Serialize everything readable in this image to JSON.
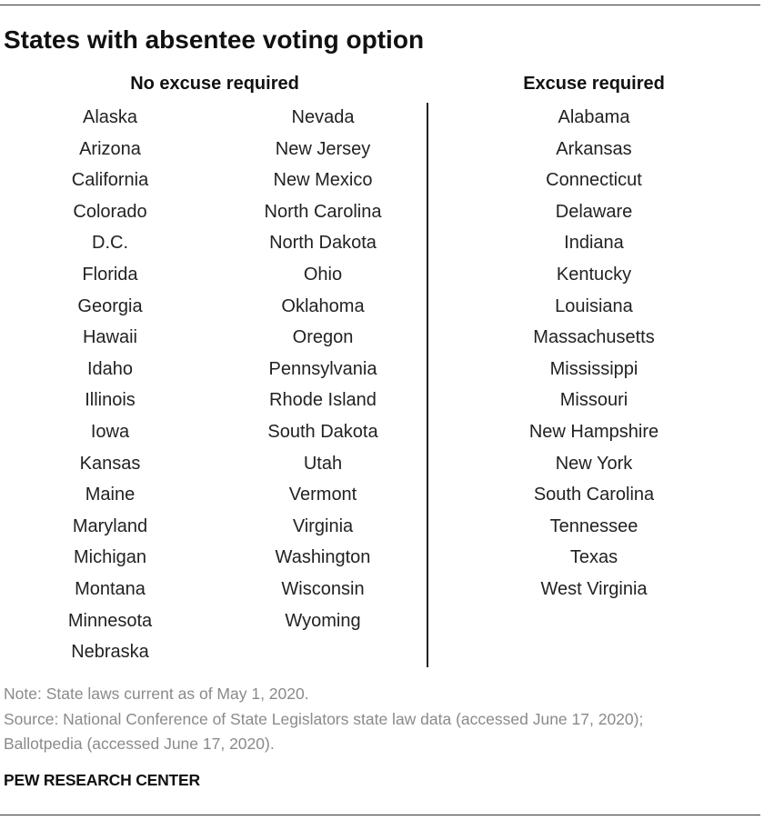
{
  "title": "States with absentee voting option",
  "no_excuse": {
    "heading": "No excuse required",
    "column1": [
      "Alaska",
      "Arizona",
      "California",
      "Colorado",
      "D.C.",
      "Florida",
      "Georgia",
      "Hawaii",
      "Idaho",
      "Illinois",
      "Iowa",
      "Kansas",
      "Maine",
      "Maryland",
      "Michigan",
      "Montana",
      "Minnesota",
      "Nebraska"
    ],
    "column2": [
      "Nevada",
      "New Jersey",
      "New Mexico",
      "North Carolina",
      "North Dakota",
      "Ohio",
      "Oklahoma",
      "Oregon",
      "Pennsylvania",
      "Rhode Island",
      "South Dakota",
      "Utah",
      "Vermont",
      "Virginia",
      "Washington",
      "Wisconsin",
      "Wyoming"
    ]
  },
  "excuse": {
    "heading": "Excuse required",
    "column": [
      "Alabama",
      "Arkansas",
      "Connecticut",
      "Delaware",
      "Indiana",
      "Kentucky",
      "Louisiana",
      "Massachusetts",
      "Mississippi",
      "Missouri",
      "New Hampshire",
      "New York",
      "South Carolina",
      "Tennessee",
      "Texas",
      "West Virginia"
    ]
  },
  "note": "Note: State laws current as of May 1, 2020.",
  "source_line1": "Source: National Conference of State Legislators state law data (accessed June 17, 2020);",
  "source_line2": "Ballotpedia (accessed June 17, 2020).",
  "brand": "PEW RESEARCH CENTER"
}
